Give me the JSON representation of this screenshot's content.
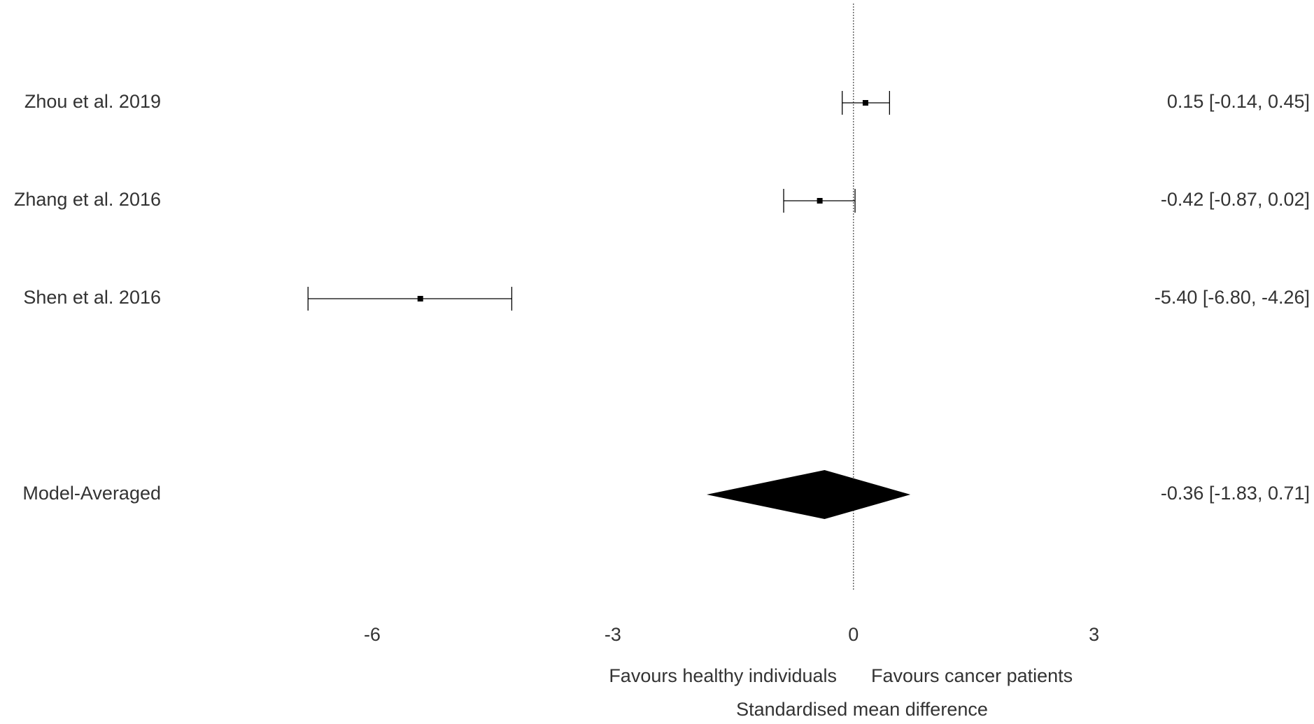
{
  "chart_data": {
    "type": "forest",
    "categories": [
      "Zhou et al. 2019",
      "Zhang et al. 2016",
      "Shen et al. 2016",
      "Model-Averaged"
    ],
    "values": [
      0.15,
      -0.42,
      -5.4,
      -0.36
    ],
    "lower": [
      -0.14,
      -0.87,
      -6.8,
      -1.83
    ],
    "upper": [
      0.45,
      0.02,
      -4.26,
      0.71
    ],
    "value_labels": [
      "0.15 [-0.14,  0.45]",
      "-0.42 [-0.87,  0.02]",
      "-5.40 [-6.80, -4.26]",
      "-0.36 [-1.83,  0.71]"
    ],
    "xlim": [
      -7.5,
      3.5
    ],
    "xticks": [
      -6,
      -3,
      0,
      3
    ],
    "refline": 0,
    "left_label": "Favours healthy individuals",
    "right_label": "Favours cancer patients",
    "xlabel": "Standardised mean difference",
    "color": "#000000"
  }
}
